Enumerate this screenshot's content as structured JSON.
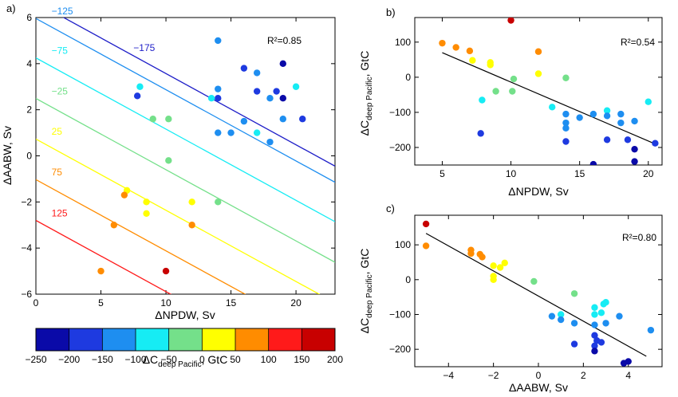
{
  "colorbar": {
    "ticks": [
      -250,
      -200,
      -150,
      -100,
      -50,
      0,
      50,
      100,
      150,
      200
    ],
    "colors": [
      "#0a0aa8",
      "#1e3ae0",
      "#1e8ef0",
      "#16ecf4",
      "#74e08a",
      "#ffff00",
      "#ff8c00",
      "#ff1a1a",
      "#c80000"
    ],
    "label_main": "ΔC",
    "label_sub": "deep Pacific",
    "label_tail": ", GtC"
  },
  "chart_data": [
    {
      "panel": "a)",
      "type": "scatter",
      "xlabel": "ΔNPDW, Sv",
      "ylabel": "ΔAABW, Sv",
      "xlim": [
        0,
        23
      ],
      "ylim": [
        -6,
        6
      ],
      "xticks": [
        0,
        5,
        10,
        15,
        20
      ],
      "yticks": [
        -6,
        -4,
        -2,
        0,
        2,
        4,
        6
      ],
      "r2_label": "R²=0.85",
      "contours": [
        {
          "label": "-175",
          "value": -175,
          "color": "#1e1ec8",
          "y0": 6.66,
          "slope": -0.309
        },
        {
          "label": "-125",
          "value": -125,
          "color": "#1e8ef0",
          "y0": 5.96,
          "slope": -0.309
        },
        {
          "label": "-75",
          "value": -75,
          "color": "#16ecf4",
          "y0": 4.25,
          "slope": -0.309
        },
        {
          "label": "-25",
          "value": -25,
          "color": "#74e08a",
          "y0": 2.49,
          "slope": -0.309
        },
        {
          "label": "25",
          "value": 25,
          "color": "#ffff00",
          "y0": 0.73,
          "slope": -0.309
        },
        {
          "label": "75",
          "value": 75,
          "color": "#ff8c00",
          "y0": -1.03,
          "slope": -0.309
        },
        {
          "label": "125",
          "value": 125,
          "color": "#ff1a1a",
          "y0": -2.8,
          "slope": -0.309
        }
      ],
      "points": [
        {
          "x": 14,
          "y": 5,
          "c": -125
        },
        {
          "x": 16,
          "y": 3.8,
          "c": -200
        },
        {
          "x": 17,
          "y": 3.6,
          "c": -150
        },
        {
          "x": 19,
          "y": 4,
          "c": -220
        },
        {
          "x": 20,
          "y": 3,
          "c": -75
        },
        {
          "x": 17,
          "y": 2.8,
          "c": -180
        },
        {
          "x": 18,
          "y": 2.5,
          "c": -150
        },
        {
          "x": 18.5,
          "y": 2.8,
          "c": -200
        },
        {
          "x": 19,
          "y": 2.5,
          "c": -210
        },
        {
          "x": 14,
          "y": 2.9,
          "c": -130
        },
        {
          "x": 14,
          "y": 2.5,
          "c": -200
        },
        {
          "x": 13.5,
          "y": 2.5,
          "c": -90
        },
        {
          "x": 7.8,
          "y": 2.6,
          "c": -180
        },
        {
          "x": 8,
          "y": 3,
          "c": -70
        },
        {
          "x": 9,
          "y": 1.6,
          "c": -40
        },
        {
          "x": 10.2,
          "y": 1.6,
          "c": -40
        },
        {
          "x": 14,
          "y": 1,
          "c": -110
        },
        {
          "x": 15,
          "y": 1,
          "c": -120
        },
        {
          "x": 16,
          "y": 1.5,
          "c": -130
        },
        {
          "x": 17,
          "y": 1,
          "c": -90
        },
        {
          "x": 18,
          "y": 0.6,
          "c": -140
        },
        {
          "x": 19,
          "y": 1.6,
          "c": -140
        },
        {
          "x": 20.5,
          "y": 1.6,
          "c": -190
        },
        {
          "x": 10.2,
          "y": -0.2,
          "c": -40
        },
        {
          "x": 7,
          "y": -1.5,
          "c": 40
        },
        {
          "x": 6.8,
          "y": -1.7,
          "c": 65
        },
        {
          "x": 8.5,
          "y": -2,
          "c": 30
        },
        {
          "x": 8.5,
          "y": -2.5,
          "c": 30
        },
        {
          "x": 12,
          "y": -2,
          "c": 30
        },
        {
          "x": 14,
          "y": -2,
          "c": -35
        },
        {
          "x": 6,
          "y": -3,
          "c": 70
        },
        {
          "x": 12,
          "y": -3,
          "c": 65
        },
        {
          "x": 5,
          "y": -5,
          "c": 75
        },
        {
          "x": 10,
          "y": -5,
          "c": 170
        }
      ]
    },
    {
      "panel": "b)",
      "type": "scatter",
      "xlabel": "ΔNPDW, Sv",
      "ylabel_main": "ΔC",
      "ylabel_sub": "deep Pacific",
      "ylabel_tail": ", GtC",
      "xlim": [
        3,
        21
      ],
      "ylim": [
        -250,
        170
      ],
      "xticks": [
        5,
        10,
        15,
        20
      ],
      "yticks": [
        -200,
        -100,
        0,
        100
      ],
      "r2_label": "R²=0.54",
      "fit": {
        "x": [
          5,
          20.5
        ],
        "y": [
          70,
          -190
        ]
      },
      "points": [
        {
          "x": 5,
          "y": 97
        },
        {
          "x": 6,
          "y": 85
        },
        {
          "x": 7,
          "y": 75
        },
        {
          "x": 7.2,
          "y": 48
        },
        {
          "x": 8.5,
          "y": 42
        },
        {
          "x": 8.5,
          "y": 35
        },
        {
          "x": 10,
          "y": 162
        },
        {
          "x": 12,
          "y": 73
        },
        {
          "x": 12,
          "y": 10
        },
        {
          "x": 10.2,
          "y": -5
        },
        {
          "x": 14,
          "y": -2
        },
        {
          "x": 7.9,
          "y": -65
        },
        {
          "x": 8.9,
          "y": -40
        },
        {
          "x": 10.1,
          "y": -40
        },
        {
          "x": 13,
          "y": -85
        },
        {
          "x": 14,
          "y": -105
        },
        {
          "x": 14,
          "y": -130
        },
        {
          "x": 14,
          "y": -145
        },
        {
          "x": 15,
          "y": -115
        },
        {
          "x": 16,
          "y": -105
        },
        {
          "x": 17,
          "y": -95
        },
        {
          "x": 17,
          "y": -110
        },
        {
          "x": 18,
          "y": -105
        },
        {
          "x": 18,
          "y": -130
        },
        {
          "x": 19,
          "y": -125
        },
        {
          "x": 20,
          "y": -70
        },
        {
          "x": 7.8,
          "y": -160
        },
        {
          "x": 14,
          "y": -183
        },
        {
          "x": 17,
          "y": -178
        },
        {
          "x": 18.5,
          "y": -178
        },
        {
          "x": 19,
          "y": -205
        },
        {
          "x": 20.5,
          "y": -188
        },
        {
          "x": 16,
          "y": -248
        },
        {
          "x": 19,
          "y": -240
        }
      ]
    },
    {
      "panel": "c)",
      "type": "scatter",
      "xlabel": "ΔAABW, Sv",
      "ylabel_main": "ΔC",
      "ylabel_sub": "deep Pacific",
      "ylabel_tail": ", GtC",
      "xlim": [
        -5.5,
        5.5
      ],
      "ylim": [
        -250,
        185
      ],
      "xticks": [
        -4,
        -2,
        0,
        2,
        4
      ],
      "yticks": [
        -200,
        -100,
        0,
        100
      ],
      "r2_label": "R²=0.80",
      "fit": {
        "x": [
          -5,
          4.8
        ],
        "y": [
          133,
          -220
        ]
      },
      "points": [
        {
          "x": -5,
          "y": 160
        },
        {
          "x": -5,
          "y": 97
        },
        {
          "x": -3,
          "y": 85
        },
        {
          "x": -3,
          "y": 75
        },
        {
          "x": -2.6,
          "y": 73
        },
        {
          "x": -2.5,
          "y": 65
        },
        {
          "x": -2,
          "y": 40
        },
        {
          "x": -1.5,
          "y": 48
        },
        {
          "x": -1.7,
          "y": 35
        },
        {
          "x": -2,
          "y": 10
        },
        {
          "x": -2,
          "y": 0
        },
        {
          "x": -0.2,
          "y": -5
        },
        {
          "x": 1.6,
          "y": -40
        },
        {
          "x": 1,
          "y": -100
        },
        {
          "x": 0.6,
          "y": -105
        },
        {
          "x": 1,
          "y": -115
        },
        {
          "x": 1.6,
          "y": -125
        },
        {
          "x": 2.5,
          "y": -80
        },
        {
          "x": 2.9,
          "y": -70
        },
        {
          "x": 2.8,
          "y": -95
        },
        {
          "x": 3,
          "y": -65
        },
        {
          "x": 3.6,
          "y": -105
        },
        {
          "x": 2.5,
          "y": -130
        },
        {
          "x": 2.5,
          "y": -160
        },
        {
          "x": 2.6,
          "y": -175
        },
        {
          "x": 2.5,
          "y": -190
        },
        {
          "x": 2.5,
          "y": -205
        },
        {
          "x": 2.8,
          "y": -180
        },
        {
          "x": 1.6,
          "y": -185
        },
        {
          "x": 3,
          "y": -125
        },
        {
          "x": 3.8,
          "y": -240
        },
        {
          "x": 4,
          "y": -235
        },
        {
          "x": 5,
          "y": -145
        },
        {
          "x": 2.5,
          "y": -100
        }
      ]
    }
  ]
}
